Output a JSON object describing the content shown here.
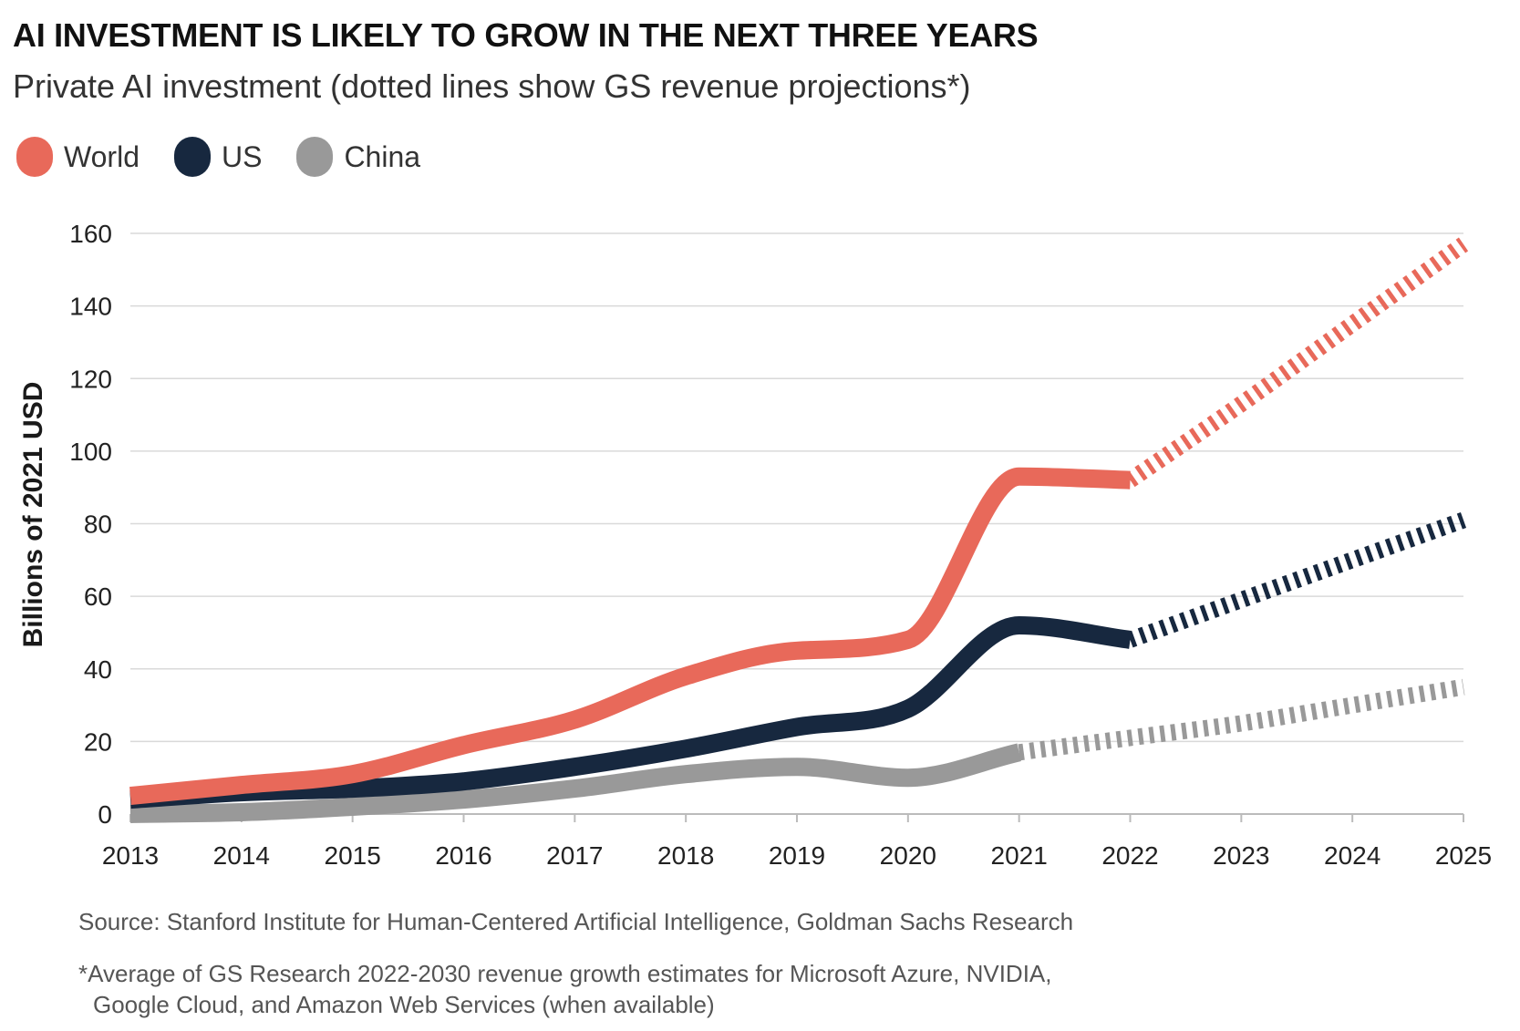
{
  "header": {
    "title": "AI INVESTMENT IS LIKELY TO GROW IN THE NEXT THREE YEARS",
    "subtitle": "Private AI investment (dotted lines show GS revenue projections*)"
  },
  "legend": [
    {
      "label": "World",
      "color": "#e8695a"
    },
    {
      "label": "US",
      "color": "#17283f"
    },
    {
      "label": "China",
      "color": "#999999"
    }
  ],
  "footer": {
    "source": "Source: Stanford Institute for Human-Centered Artificial Intelligence, Goldman Sachs Research",
    "footnote_line1": "*Average of GS Research 2022-2030 revenue growth estimates for Microsoft Azure, NVIDIA,",
    "footnote_line2": "Google Cloud, and Amazon Web Services (when available)"
  },
  "chart_data": {
    "type": "line",
    "title": "AI INVESTMENT IS LIKELY TO GROW IN THE NEXT THREE YEARS",
    "subtitle": "Private AI investment (dotted lines show GS revenue projections*)",
    "xlabel": "",
    "ylabel": "Billions of 2021 USD",
    "x": [
      2013,
      2014,
      2015,
      2016,
      2017,
      2018,
      2019,
      2020,
      2021,
      2022,
      2023,
      2024,
      2025
    ],
    "x_tick_labels": [
      "2013",
      "2014",
      "2015",
      "2016",
      "2017",
      "2018",
      "2019",
      "2020",
      "2021",
      "2022",
      "2023",
      "2024",
      "2025"
    ],
    "ylim": [
      0,
      160
    ],
    "y_ticks": [
      0,
      20,
      40,
      60,
      80,
      100,
      120,
      140,
      160
    ],
    "y_tick_labels": [
      "0",
      "20",
      "40",
      "60",
      "80",
      "100",
      "120",
      "140",
      "160"
    ],
    "grid": true,
    "legend_position": "top-left",
    "series": [
      {
        "name": "World",
        "color": "#e8695a",
        "actual": {
          "x": [
            2013,
            2014,
            2015,
            2016,
            2017,
            2018,
            2019,
            2020,
            2021,
            2022
          ],
          "y": [
            5,
            8,
            11,
            19,
            26,
            38,
            45,
            48,
            93,
            92
          ]
        },
        "projection": {
          "x": [
            2022,
            2023,
            2024,
            2025
          ],
          "y": [
            92,
            113,
            135,
            157
          ]
        }
      },
      {
        "name": "US",
        "color": "#17283f",
        "actual": {
          "x": [
            2013,
            2014,
            2015,
            2016,
            2017,
            2018,
            2019,
            2020,
            2021,
            2022
          ],
          "y": [
            4,
            6,
            7,
            9,
            13,
            18,
            24,
            29,
            52,
            48
          ]
        },
        "projection": {
          "x": [
            2022,
            2023,
            2024,
            2025
          ],
          "y": [
            48,
            59,
            70,
            81
          ]
        }
      },
      {
        "name": "China",
        "color": "#999999",
        "actual": {
          "x": [
            2013,
            2014,
            2015,
            2016,
            2017,
            2018,
            2019,
            2020,
            2021
          ],
          "y": [
            0,
            0.5,
            2,
            4,
            7,
            11,
            13,
            10,
            17
          ]
        },
        "projection": {
          "x": [
            2021,
            2022,
            2023,
            2024,
            2025
          ],
          "y": [
            17,
            21,
            25,
            30,
            35
          ]
        }
      }
    ]
  }
}
